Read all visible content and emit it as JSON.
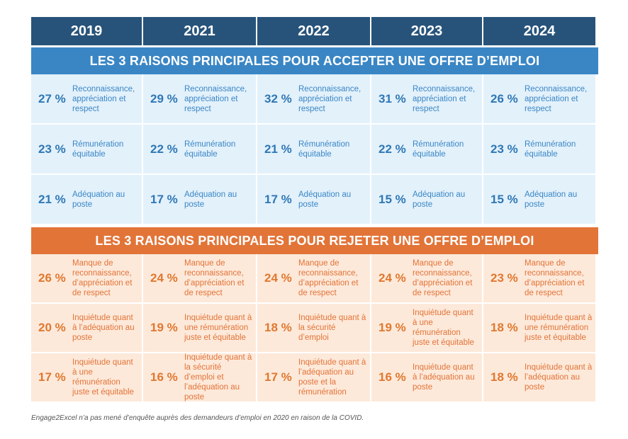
{
  "chart_data": {
    "type": "table",
    "years": [
      "2019",
      "2021",
      "2022",
      "2023",
      "2024"
    ],
    "accept_title": "LES 3 RAISONS PRINCIPALES POUR ACCEPTER UNE OFFRE D’EMPLOI",
    "reject_title": "LES 3 RAISONS PRINCIPALES POUR REJETER UNE OFFRE D’EMPLOI",
    "accept_rows": [
      [
        {
          "pct": "27 %",
          "label": "Reconnaissance, appréciation et respect"
        },
        {
          "pct": "29 %",
          "label": "Reconnaissance, appréciation et respect"
        },
        {
          "pct": "32 %",
          "label": "Reconnaissance, appréciation et respect"
        },
        {
          "pct": "31 %",
          "label": "Reconnaissance, appréciation et respect"
        },
        {
          "pct": "26 %",
          "label": "Reconnaissance, appréciation et respect"
        }
      ],
      [
        {
          "pct": "23 %",
          "label": "Rémunération équitable"
        },
        {
          "pct": "22 %",
          "label": "Rémunération équitable"
        },
        {
          "pct": "21 %",
          "label": "Rémunération équitable"
        },
        {
          "pct": "22 %",
          "label": "Rémunération équitable"
        },
        {
          "pct": "23 %",
          "label": "Rémunération équitable"
        }
      ],
      [
        {
          "pct": "21 %",
          "label": "Adéquation au poste"
        },
        {
          "pct": "17 %",
          "label": "Adéquation au poste"
        },
        {
          "pct": "17 %",
          "label": "Adéquation au poste"
        },
        {
          "pct": "15 %",
          "label": "Adéquation au poste"
        },
        {
          "pct": "15 %",
          "label": "Adéquation au poste"
        }
      ]
    ],
    "reject_rows": [
      [
        {
          "pct": "26 %",
          "label": "Manque de reconnaissance, d’appréciation et de respect"
        },
        {
          "pct": "24 %",
          "label": "Manque de reconnaissance, d’appréciation et de respect"
        },
        {
          "pct": "24 %",
          "label": "Manque de reconnaissance, d’appréciation et de respect"
        },
        {
          "pct": "24 %",
          "label": "Manque de reconnaissance, d’appréciation et de respect"
        },
        {
          "pct": "23 %",
          "label": "Manque de reconnaissance, d’appréciation et de respect"
        }
      ],
      [
        {
          "pct": "20 %",
          "label": "Inquiétude quant à l’adéquation au poste"
        },
        {
          "pct": "19 %",
          "label": "Inquiétude quant à une rémunération juste et équitable"
        },
        {
          "pct": "18 %",
          "label": "Inquiétude quant à la sécurité d’emploi"
        },
        {
          "pct": "19 %",
          "label": "Inquiétude quant à une rémunération juste et équitable"
        },
        {
          "pct": "18 %",
          "label": "Inquiétude quant à une rémunération juste et équitable"
        }
      ],
      [
        {
          "pct": "17 %",
          "label": "Inquiétude quant à une rémunération juste et équitable"
        },
        {
          "pct": "16 %",
          "label": "Inquiétude quant à la sécurité d’emploi et l’adéquation au poste"
        },
        {
          "pct": "17 %",
          "label": "Inquiétude quant à l’adéquation au poste et la rémunération"
        },
        {
          "pct": "16 %",
          "label": "Inquiétude quant à l’adéquation au poste"
        },
        {
          "pct": "18 %",
          "label": "Inquiétude quant à l’adéquation au poste"
        }
      ]
    ],
    "footnote": "Engage2Excel n’a pas mené d’enquête auprès des demandeurs d’emploi en 2020 en raison de la COVID."
  },
  "colors": {
    "header": "#27537a",
    "accept_banner": "#3a86c5",
    "accept_cell": "#e3f1fb",
    "reject_banner": "#e27438",
    "reject_cell": "#fde9da"
  }
}
